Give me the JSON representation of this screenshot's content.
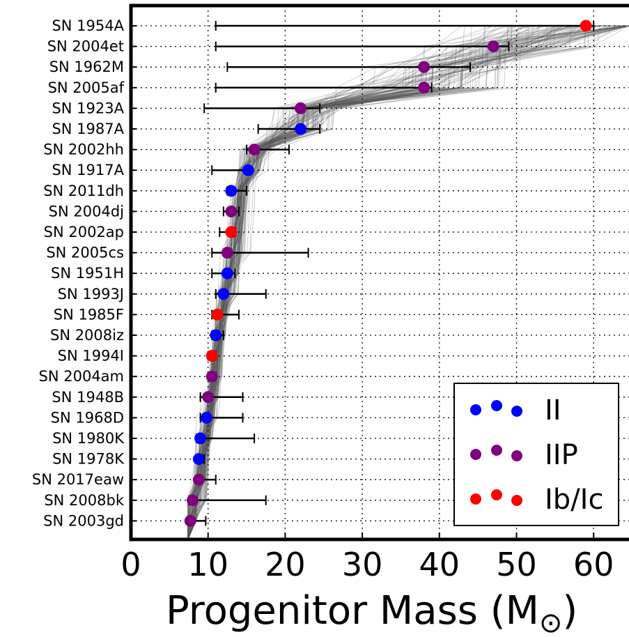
{
  "chart_data": {
    "type": "scatter",
    "xlabel": "Progenitor Mass (M",
    "xlabel_symbol": "⊙",
    "xlabel_close": ")",
    "xlim": [
      0,
      65
    ],
    "xticks": [
      0,
      10,
      20,
      30,
      40,
      50,
      60
    ],
    "xtick_labels": [
      "0",
      "10",
      "20",
      "30",
      "40",
      "50",
      "60"
    ],
    "grid": "dotted",
    "legend_position": "lower-right",
    "colors": {
      "II": "#0000ff",
      "IIP": "#800080",
      "Ib/Ic": "#ff0000",
      "errorbar": "#000000",
      "trace": "#555555"
    },
    "series": [
      {
        "name": "II",
        "color": "#0000ff"
      },
      {
        "name": "IIP",
        "color": "#800080"
      },
      {
        "name": "Ib/Ic",
        "color": "#ff0000"
      }
    ],
    "points": [
      {
        "label": "SN 1954A",
        "type": "Ib/Ic",
        "mass": 59,
        "err_low": 11,
        "err_high": 60
      },
      {
        "label": "SN 2004et",
        "type": "IIP",
        "mass": 47,
        "err_low": 11,
        "err_high": 49
      },
      {
        "label": "SN 1962M",
        "type": "IIP",
        "mass": 38,
        "err_low": 12.5,
        "err_high": 44
      },
      {
        "label": "SN 2005af",
        "type": "IIP",
        "mass": 38,
        "err_low": 11,
        "err_high": 39
      },
      {
        "label": "SN 1923A",
        "type": "IIP",
        "mass": 22,
        "err_low": 9.5,
        "err_high": 24.5
      },
      {
        "label": "SN 1987A",
        "type": "II",
        "mass": 22,
        "err_low": 16.5,
        "err_high": 24.5
      },
      {
        "label": "SN 2002hh",
        "type": "IIP",
        "mass": 16,
        "err_low": 15,
        "err_high": 20.5
      },
      {
        "label": "SN 1917A",
        "type": "II",
        "mass": 15.2,
        "err_low": 10.5,
        "err_high": 15.5
      },
      {
        "label": "SN 2011dh",
        "type": "II",
        "mass": 13,
        "err_low": 12.5,
        "err_high": 15
      },
      {
        "label": "SN 2004dj",
        "type": "IIP",
        "mass": 13,
        "err_low": 12,
        "err_high": 14
      },
      {
        "label": "SN 2002ap",
        "type": "Ib/Ic",
        "mass": 13,
        "err_low": 11.5,
        "err_high": 13.5
      },
      {
        "label": "SN 2005cs",
        "type": "IIP",
        "mass": 12.5,
        "err_low": 10.5,
        "err_high": 23
      },
      {
        "label": "SN 1951H",
        "type": "II",
        "mass": 12.5,
        "err_low": 10.5,
        "err_high": 13.5
      },
      {
        "label": "SN 1993J",
        "type": "II",
        "mass": 12,
        "err_low": 11,
        "err_high": 17.5
      },
      {
        "label": "SN 1985F",
        "type": "Ib/Ic",
        "mass": 11.2,
        "err_low": 10.5,
        "err_high": 14
      },
      {
        "label": "SN 2008iz",
        "type": "II",
        "mass": 11,
        "err_low": 10.5,
        "err_high": 12
      },
      {
        "label": "SN 1994I",
        "type": "Ib/Ic",
        "mass": 10.5,
        "err_low": 10,
        "err_high": 11
      },
      {
        "label": "SN 2004am",
        "type": "IIP",
        "mass": 10.5,
        "err_low": 10,
        "err_high": 11
      },
      {
        "label": "SN 1948B",
        "type": "IIP",
        "mass": 10,
        "err_low": 9,
        "err_high": 14.5
      },
      {
        "label": "SN 1968D",
        "type": "II",
        "mass": 9.8,
        "err_low": 9,
        "err_high": 14.5
      },
      {
        "label": "SN 1980K",
        "type": "II",
        "mass": 9,
        "err_low": 8.5,
        "err_high": 16
      },
      {
        "label": "SN 1978K",
        "type": "II",
        "mass": 8.8,
        "err_low": 8.5,
        "err_high": 9.5
      },
      {
        "label": "SN 2017eaw",
        "type": "IIP",
        "mass": 8.8,
        "err_low": 8.5,
        "err_high": 11
      },
      {
        "label": "SN 2008bk",
        "type": "IIP",
        "mass": 8,
        "err_low": 7.5,
        "err_high": 17.5
      },
      {
        "label": "SN 2003gd",
        "type": "IIP",
        "mass": 7.7,
        "err_low": 7.5,
        "err_high": 9.7
      }
    ]
  }
}
